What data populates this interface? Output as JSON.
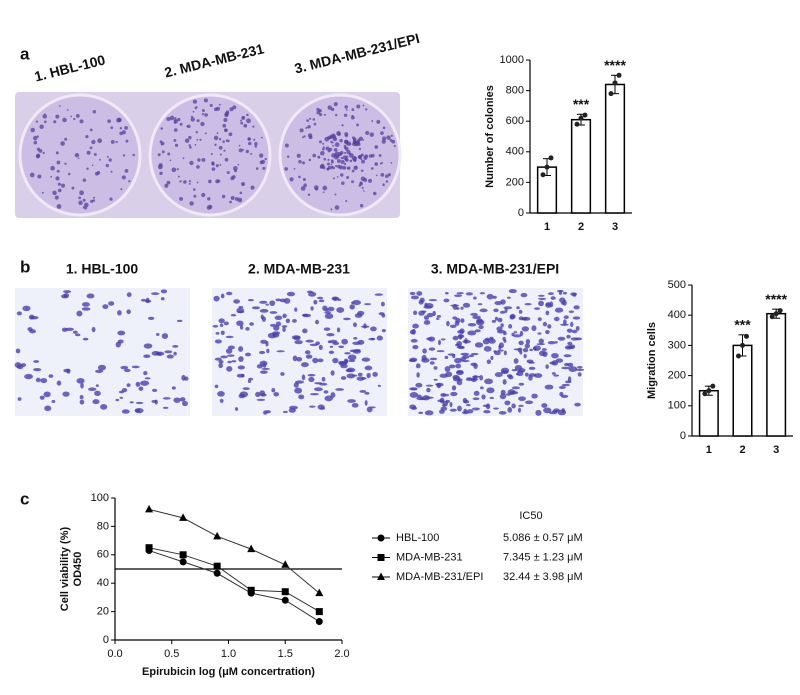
{
  "images": {
    "a": {
      "labels": [
        "1. HBL-100",
        "2. MDA-MB-231",
        "3. MDA-MB-231/EPI"
      ]
    },
    "b": {
      "labels": [
        "1. HBL-100",
        "2. MDA-MB-231",
        "3. MDA-MB-231/EPI"
      ]
    }
  },
  "chart_data": [
    {
      "type": "bar",
      "panel": "a",
      "ylabel": "Number of colonies",
      "categories": [
        "1",
        "2",
        "3"
      ],
      "values": [
        300,
        610,
        840
      ],
      "errors": [
        55,
        35,
        60
      ],
      "replicates": [
        [
          250,
          300,
          360
        ],
        [
          580,
          620,
          640
        ],
        [
          780,
          850,
          900
        ]
      ],
      "annotations": [
        null,
        "***",
        "****"
      ],
      "color": "#ffffff",
      "ylim": [
        0,
        1000
      ],
      "yticks": [
        0,
        200,
        400,
        600,
        800,
        1000
      ]
    },
    {
      "type": "bar",
      "panel": "b",
      "ylabel": "Migration cells",
      "categories": [
        "1",
        "2",
        "3"
      ],
      "values": [
        150,
        300,
        405
      ],
      "errors": [
        15,
        35,
        15
      ],
      "replicates": [
        [
          140,
          150,
          165
        ],
        [
          265,
          300,
          330
        ],
        [
          395,
          405,
          415
        ]
      ],
      "annotations": [
        null,
        "***",
        "****"
      ],
      "color": "#ffffff",
      "ylim": [
        0,
        500
      ],
      "yticks": [
        0,
        100,
        200,
        300,
        400,
        500
      ]
    },
    {
      "type": "line",
      "panel": "c",
      "xlabel": "Epirubicin log (μM concertration)",
      "ylabel": [
        "Cell viability (%)",
        "OD450"
      ],
      "xlim": [
        0,
        2
      ],
      "xticks": [
        {
          "value": 0,
          "label": "0.0"
        },
        {
          "value": 0.5,
          "label": "0.5"
        },
        {
          "value": 1,
          "label": "1.0"
        },
        {
          "value": 1.5,
          "label": "1.5"
        },
        {
          "value": 2,
          "label": "2.0"
        }
      ],
      "ylim": [
        0,
        100
      ],
      "yticks": [
        0,
        20,
        40,
        60,
        80,
        100
      ],
      "reference_line": 50,
      "legend_title": "IC50",
      "series": [
        {
          "name": "HBL-100",
          "marker": "circle",
          "ic50": "5.086 ± 0.57 μM",
          "x": [
            0.3,
            0.6,
            0.9,
            1.2,
            1.5,
            1.8
          ],
          "values": [
            63,
            55,
            47,
            33,
            28,
            13
          ]
        },
        {
          "name": "MDA-MB-231",
          "marker": "square",
          "ic50": "7.345 ± 1.23 μM",
          "x": [
            0.3,
            0.6,
            0.9,
            1.2,
            1.5,
            1.8
          ],
          "values": [
            65,
            60,
            52,
            35,
            34,
            20
          ]
        },
        {
          "name": "MDA-MB-231/EPI",
          "marker": "triangle",
          "ic50": "32.44 ± 3.98 μM",
          "x": [
            0.3,
            0.6,
            0.9,
            1.2,
            1.5,
            1.8
          ],
          "values": [
            92,
            86,
            73,
            64,
            53,
            33
          ]
        }
      ]
    }
  ]
}
